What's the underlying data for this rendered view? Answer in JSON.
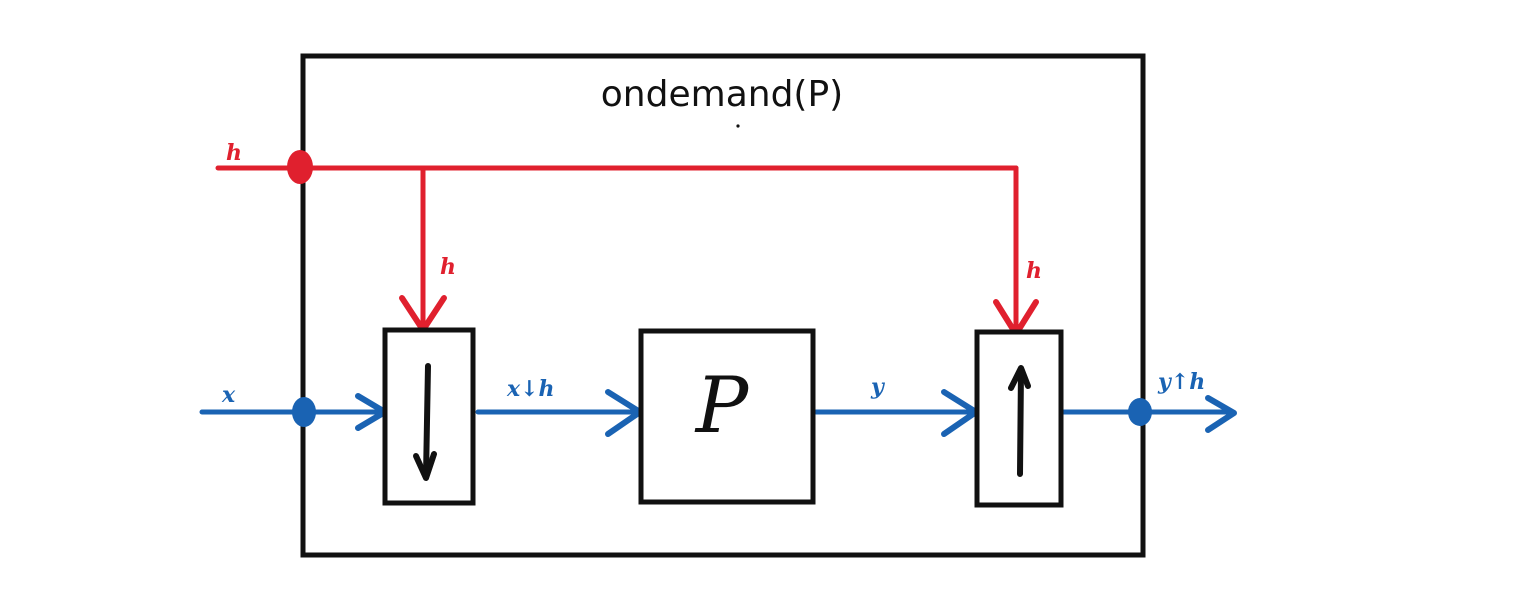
{
  "diagram": {
    "title": "ondemand(P)",
    "process_label": "P",
    "labels": {
      "h_input": "h",
      "h_down": "h",
      "h_up": "h",
      "x_input": "x",
      "x_down_h": "x↓h",
      "y": "y",
      "y_up_h": "y↑h"
    },
    "symbols": {
      "downsample": "down-arrow-icon",
      "upsample": "up-arrow-icon"
    },
    "colors": {
      "h_signal": "#e0202e",
      "data_signal": "#1a63b3",
      "box": "#111111"
    }
  }
}
